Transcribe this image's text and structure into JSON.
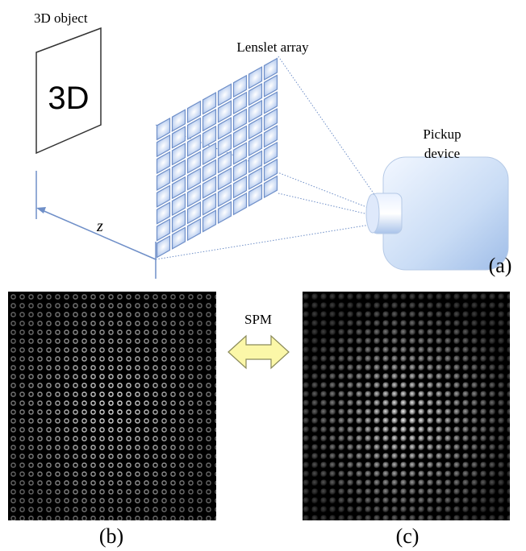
{
  "panel_a": {
    "object_label": "3D object",
    "object_text": "3D",
    "lenslet_label": "Lenslet array",
    "device_label": [
      "Pickup",
      "device"
    ],
    "axis_label": "z",
    "caption": "(a)"
  },
  "arrow_label": "SPM",
  "panel_b": {
    "caption": "(b)"
  },
  "panel_c": {
    "caption": "(c)"
  }
}
